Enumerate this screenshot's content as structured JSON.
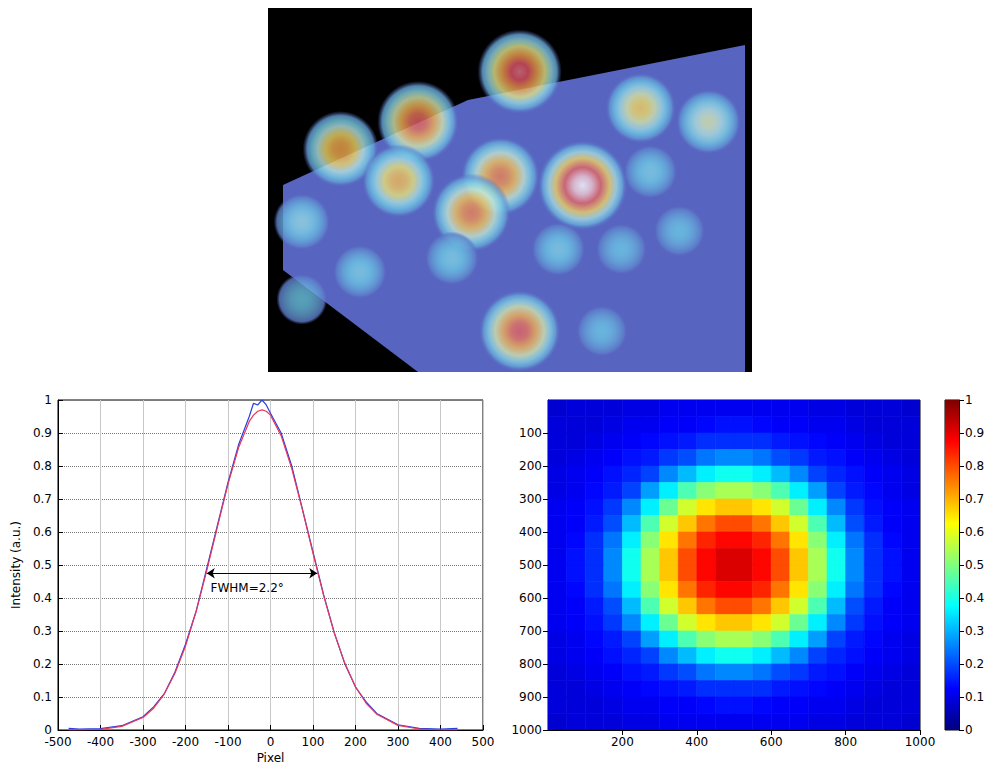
{
  "chart_data": [
    {
      "type": "surface",
      "xlim": [
        0,
        10
      ],
      "ylim": [
        0,
        8
      ],
      "zlim": [
        0,
        1
      ],
      "tick_labels": false,
      "peaks": {
        "x": [
          5.2,
          7.7,
          3.1,
          9.1,
          1.5,
          7.9,
          4.8,
          2.7,
          6.5,
          4.2,
          0.7,
          8.5,
          6.0,
          7.3,
          3.8,
          1.9,
          0.7,
          5.2,
          6.9
        ],
        "y": [
          6.6,
          5.8,
          5.5,
          5.5,
          4.9,
          4.4,
          4.3,
          4.2,
          4.1,
          3.5,
          3.3,
          3.1,
          2.7,
          2.7,
          2.5,
          2.2,
          1.6,
          0.9,
          0.9
        ],
        "height": [
          0.9,
          0.65,
          0.85,
          0.55,
          0.75,
          0.35,
          0.8,
          0.7,
          1.0,
          0.8,
          0.4,
          0.3,
          0.35,
          0.3,
          0.35,
          0.35,
          0.3,
          0.85,
          0.3
        ]
      }
    },
    {
      "type": "line",
      "xlabel": "Pixel",
      "ylabel": "Intensity (a.u.)",
      "x": [
        -475,
        -450,
        -400,
        -350,
        -300,
        -275,
        -250,
        -225,
        -200,
        -175,
        -150,
        -125,
        -100,
        -75,
        -50,
        -40,
        -30,
        -20,
        -10,
        0,
        25,
        50,
        75,
        100,
        125,
        150,
        175,
        200,
        225,
        250,
        300,
        350,
        400,
        440
      ],
      "series": [
        {
          "color": "#2a3de0",
          "values": [
            0.005,
            0.003,
            0.004,
            0.013,
            0.04,
            0.07,
            0.11,
            0.175,
            0.26,
            0.36,
            0.49,
            0.62,
            0.75,
            0.865,
            0.95,
            0.99,
            0.985,
            1.0,
            0.985,
            0.96,
            0.9,
            0.8,
            0.67,
            0.54,
            0.41,
            0.295,
            0.2,
            0.13,
            0.085,
            0.05,
            0.016,
            0.005,
            0.003,
            0.005
          ]
        },
        {
          "color": "#e8385a",
          "values": [
            0,
            0,
            0.002,
            0.011,
            0.038,
            0.066,
            0.109,
            0.171,
            0.254,
            0.359,
            0.483,
            0.615,
            0.745,
            0.856,
            0.935,
            0.954,
            0.966,
            0.97,
            0.966,
            0.954,
            0.892,
            0.792,
            0.668,
            0.535,
            0.407,
            0.294,
            0.202,
            0.131,
            0.081,
            0.048,
            0.014,
            0.003,
            0,
            0
          ]
        }
      ],
      "xlim": [
        -500,
        500
      ],
      "xticks": [
        -500,
        -400,
        -300,
        -200,
        -100,
        0,
        100,
        200,
        300,
        400,
        500
      ],
      "ylim": [
        0,
        1
      ],
      "yticks": [
        0,
        0.1,
        0.2,
        0.3,
        0.4,
        0.5,
        0.6,
        0.7,
        0.8,
        0.9,
        1
      ],
      "grid": true,
      "annotations": [
        {
          "text": "FWHM=2.2°",
          "x_start": -150,
          "x_end": 110,
          "y": 0.475,
          "text_x": -55,
          "text_y": 0.43
        }
      ]
    },
    {
      "type": "heatmap",
      "x": [
        25,
        75,
        125,
        175,
        225,
        275,
        325,
        375,
        425,
        475,
        525,
        575,
        625,
        675,
        725,
        775,
        825,
        875,
        925,
        975
      ],
      "y": [
        25,
        75,
        125,
        175,
        225,
        275,
        325,
        375,
        425,
        475,
        525,
        575,
        625,
        675,
        725,
        775,
        825,
        875,
        925,
        975
      ],
      "cells": [
        [
          0.08,
          0.09,
          0.09,
          0.09,
          0.1,
          0.1,
          0.11,
          0.11,
          0.11,
          0.11,
          0.11,
          0.11,
          0.11,
          0.11,
          0.1,
          0.1,
          0.09,
          0.09,
          0.09,
          0.08
        ],
        [
          0.09,
          0.09,
          0.09,
          0.1,
          0.11,
          0.11,
          0.12,
          0.12,
          0.13,
          0.14,
          0.14,
          0.13,
          0.12,
          0.12,
          0.11,
          0.11,
          0.1,
          0.09,
          0.09,
          0.09
        ],
        [
          0.09,
          0.09,
          0.1,
          0.11,
          0.12,
          0.13,
          0.14,
          0.15,
          0.17,
          0.17,
          0.17,
          0.17,
          0.15,
          0.14,
          0.13,
          0.12,
          0.11,
          0.1,
          0.09,
          0.09
        ],
        [
          0.09,
          0.1,
          0.11,
          0.12,
          0.14,
          0.15,
          0.18,
          0.2,
          0.24,
          0.26,
          0.26,
          0.24,
          0.2,
          0.18,
          0.15,
          0.14,
          0.12,
          0.11,
          0.1,
          0.09
        ],
        [
          0.1,
          0.11,
          0.12,
          0.14,
          0.16,
          0.19,
          0.26,
          0.31,
          0.36,
          0.39,
          0.39,
          0.36,
          0.31,
          0.26,
          0.19,
          0.16,
          0.14,
          0.12,
          0.11,
          0.1
        ],
        [
          0.1,
          0.11,
          0.13,
          0.15,
          0.19,
          0.28,
          0.36,
          0.45,
          0.51,
          0.54,
          0.54,
          0.51,
          0.45,
          0.36,
          0.28,
          0.19,
          0.15,
          0.13,
          0.11,
          0.1
        ],
        [
          0.11,
          0.12,
          0.14,
          0.18,
          0.26,
          0.36,
          0.48,
          0.58,
          0.65,
          0.68,
          0.68,
          0.65,
          0.58,
          0.48,
          0.36,
          0.26,
          0.18,
          0.14,
          0.12,
          0.11
        ],
        [
          0.11,
          0.12,
          0.15,
          0.2,
          0.31,
          0.45,
          0.58,
          0.68,
          0.76,
          0.8,
          0.8,
          0.76,
          0.68,
          0.58,
          0.45,
          0.31,
          0.2,
          0.15,
          0.12,
          0.11
        ],
        [
          0.11,
          0.13,
          0.17,
          0.24,
          0.36,
          0.51,
          0.65,
          0.76,
          0.84,
          0.87,
          0.87,
          0.84,
          0.76,
          0.65,
          0.51,
          0.36,
          0.24,
          0.17,
          0.13,
          0.11
        ],
        [
          0.11,
          0.14,
          0.17,
          0.26,
          0.39,
          0.54,
          0.68,
          0.8,
          0.87,
          0.91,
          0.91,
          0.87,
          0.8,
          0.68,
          0.54,
          0.39,
          0.26,
          0.17,
          0.14,
          0.11
        ],
        [
          0.11,
          0.14,
          0.17,
          0.26,
          0.39,
          0.54,
          0.68,
          0.8,
          0.87,
          0.91,
          0.91,
          0.87,
          0.8,
          0.68,
          0.54,
          0.39,
          0.26,
          0.17,
          0.14,
          0.11
        ],
        [
          0.11,
          0.13,
          0.17,
          0.24,
          0.36,
          0.51,
          0.65,
          0.76,
          0.84,
          0.87,
          0.87,
          0.84,
          0.76,
          0.65,
          0.51,
          0.36,
          0.24,
          0.17,
          0.13,
          0.11
        ],
        [
          0.11,
          0.12,
          0.15,
          0.2,
          0.31,
          0.45,
          0.58,
          0.68,
          0.76,
          0.8,
          0.8,
          0.76,
          0.68,
          0.58,
          0.45,
          0.31,
          0.2,
          0.15,
          0.12,
          0.11
        ],
        [
          0.11,
          0.12,
          0.14,
          0.18,
          0.26,
          0.36,
          0.48,
          0.58,
          0.65,
          0.68,
          0.68,
          0.65,
          0.58,
          0.48,
          0.36,
          0.26,
          0.18,
          0.14,
          0.12,
          0.11
        ],
        [
          0.1,
          0.11,
          0.13,
          0.15,
          0.19,
          0.28,
          0.36,
          0.45,
          0.51,
          0.54,
          0.54,
          0.51,
          0.45,
          0.36,
          0.28,
          0.19,
          0.15,
          0.13,
          0.11,
          0.1
        ],
        [
          0.1,
          0.11,
          0.12,
          0.14,
          0.16,
          0.19,
          0.26,
          0.31,
          0.36,
          0.39,
          0.39,
          0.36,
          0.31,
          0.26,
          0.19,
          0.16,
          0.14,
          0.12,
          0.11,
          0.1
        ],
        [
          0.09,
          0.1,
          0.11,
          0.12,
          0.14,
          0.15,
          0.18,
          0.2,
          0.24,
          0.26,
          0.26,
          0.24,
          0.2,
          0.18,
          0.15,
          0.14,
          0.12,
          0.11,
          0.1,
          0.09
        ],
        [
          0.09,
          0.09,
          0.1,
          0.11,
          0.12,
          0.13,
          0.14,
          0.15,
          0.17,
          0.17,
          0.17,
          0.17,
          0.15,
          0.14,
          0.13,
          0.12,
          0.11,
          0.1,
          0.09,
          0.09
        ],
        [
          0.09,
          0.09,
          0.09,
          0.1,
          0.11,
          0.11,
          0.12,
          0.12,
          0.13,
          0.14,
          0.14,
          0.13,
          0.12,
          0.12,
          0.11,
          0.11,
          0.1,
          0.09,
          0.09,
          0.09
        ],
        [
          0.08,
          0.09,
          0.09,
          0.09,
          0.1,
          0.1,
          0.11,
          0.11,
          0.11,
          0.11,
          0.11,
          0.11,
          0.11,
          0.11,
          0.1,
          0.1,
          0.09,
          0.09,
          0.09,
          0.08
        ]
      ],
      "xlim": [
        0,
        1000
      ],
      "xticks": [
        200,
        400,
        600,
        800,
        1000
      ],
      "ylim": [
        1000,
        0
      ],
      "yticks": [
        100,
        200,
        300,
        400,
        500,
        600,
        700,
        800,
        900,
        1000
      ],
      "colorbar": {
        "range": [
          0,
          1
        ],
        "ticks": [
          0,
          0.1,
          0.2,
          0.3,
          0.4,
          0.5,
          0.6,
          0.7,
          0.8,
          0.9,
          1
        ]
      }
    }
  ]
}
